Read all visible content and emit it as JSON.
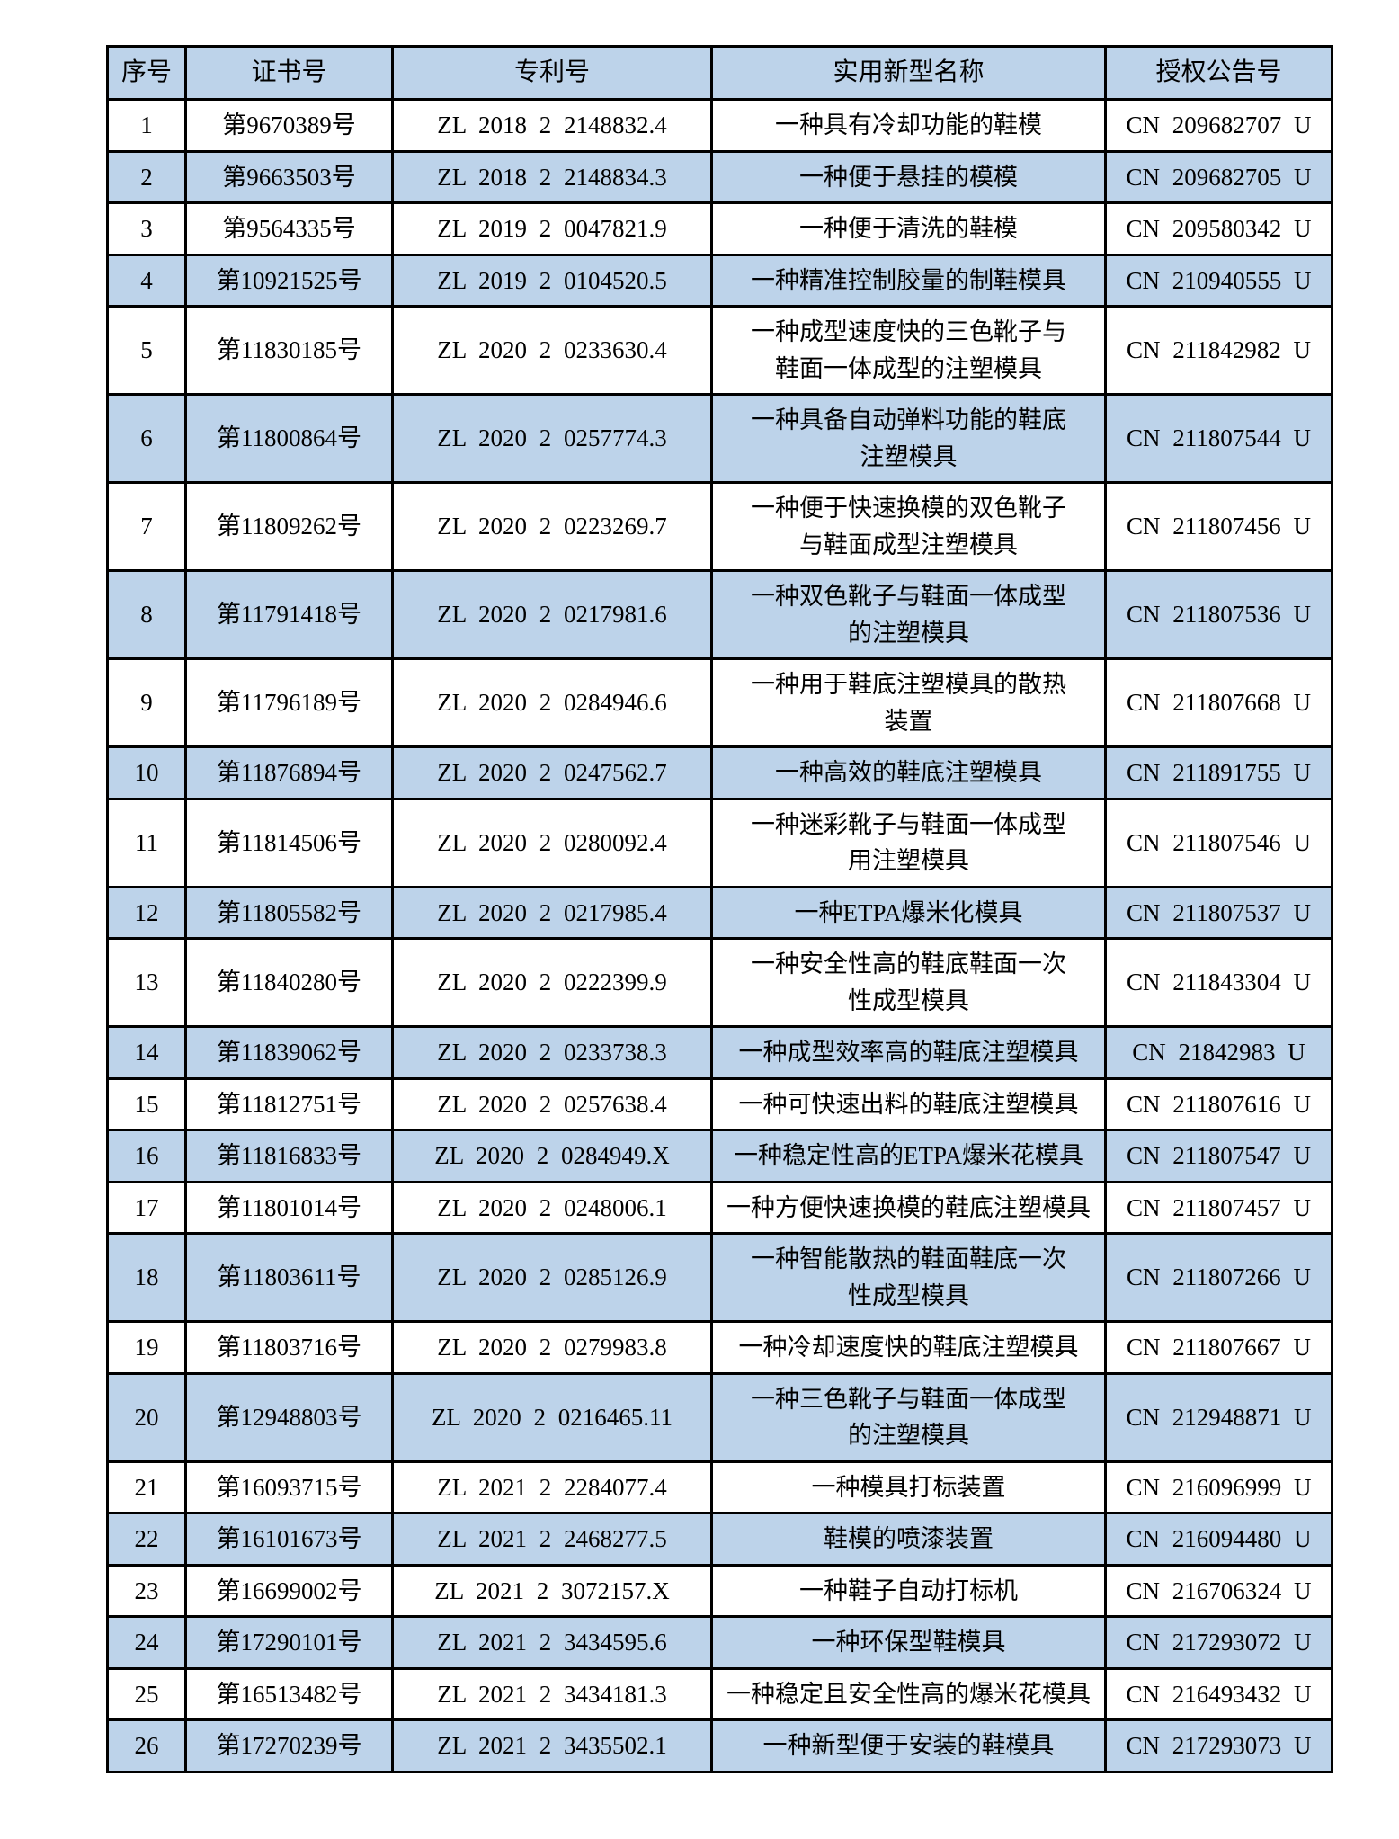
{
  "table": {
    "accent_color": "#bdd3ea",
    "border_color": "#000000",
    "headers": [
      "序号",
      "证书号",
      "专利号",
      "实用新型名称",
      "授权公告号"
    ],
    "rows": [
      {
        "no": "1",
        "cert": "第9670389号",
        "patent": "ZL 2018 2 2148832.4",
        "name": "一种具有冷却功能的鞋模",
        "pub": "CN 209682707 U"
      },
      {
        "no": "2",
        "cert": "第9663503号",
        "patent": "ZL 2018 2 2148834.3",
        "name": "一种便于悬挂的模模",
        "pub": "CN 209682705 U"
      },
      {
        "no": "3",
        "cert": "第9564335号",
        "patent": "ZL 2019 2 0047821.9",
        "name": "一种便于清洗的鞋模",
        "pub": "CN 209580342 U"
      },
      {
        "no": "4",
        "cert": "第10921525号",
        "patent": "ZL 2019 2 0104520.5",
        "name": "一种精准控制胶量的制鞋模具",
        "pub": "CN 210940555 U"
      },
      {
        "no": "5",
        "cert": "第11830185号",
        "patent": "ZL 2020 2 0233630.4",
        "name": "一种成型速度快的三色靴子与\n鞋面一体成型的注塑模具",
        "pub": "CN 211842982 U"
      },
      {
        "no": "6",
        "cert": "第11800864号",
        "patent": "ZL 2020 2 0257774.3",
        "name": "一种具备自动弹料功能的鞋底\n注塑模具",
        "pub": "CN 211807544 U"
      },
      {
        "no": "7",
        "cert": "第11809262号",
        "patent": "ZL 2020 2 0223269.7",
        "name": "一种便于快速换模的双色靴子\n与鞋面成型注塑模具",
        "pub": "CN 211807456 U"
      },
      {
        "no": "8",
        "cert": "第11791418号",
        "patent": "ZL 2020 2 0217981.6",
        "name": "一种双色靴子与鞋面一体成型\n的注塑模具",
        "pub": "CN 211807536 U"
      },
      {
        "no": "9",
        "cert": "第11796189号",
        "patent": "ZL 2020 2 0284946.6",
        "name": "一种用于鞋底注塑模具的散热\n装置",
        "pub": "CN 211807668 U"
      },
      {
        "no": "10",
        "cert": "第11876894号",
        "patent": "ZL 2020 2 0247562.7",
        "name": "一种高效的鞋底注塑模具",
        "pub": "CN 211891755 U"
      },
      {
        "no": "11",
        "cert": "第11814506号",
        "patent": "ZL 2020 2 0280092.4",
        "name": "一种迷彩靴子与鞋面一体成型\n用注塑模具",
        "pub": "CN 211807546 U"
      },
      {
        "no": "12",
        "cert": "第11805582号",
        "patent": "ZL 2020 2 0217985.4",
        "name": "一种ETPA爆米化模具",
        "pub": "CN 211807537 U"
      },
      {
        "no": "13",
        "cert": "第11840280号",
        "patent": "ZL 2020 2 0222399.9",
        "name": "一种安全性高的鞋底鞋面一次\n性成型模具",
        "pub": "CN 211843304 U"
      },
      {
        "no": "14",
        "cert": "第11839062号",
        "patent": "ZL 2020 2 0233738.3",
        "name": "一种成型效率高的鞋底注塑模具",
        "pub": "CN 21842983 U"
      },
      {
        "no": "15",
        "cert": "第11812751号",
        "patent": "ZL 2020 2 0257638.4",
        "name": "一种可快速出料的鞋底注塑模具",
        "pub": "CN 211807616 U"
      },
      {
        "no": "16",
        "cert": "第11816833号",
        "patent": "ZL 2020 2 0284949.X",
        "name": "一种稳定性高的ETPA爆米花模具",
        "pub": "CN 211807547 U"
      },
      {
        "no": "17",
        "cert": "第11801014号",
        "patent": "ZL 2020 2 0248006.1",
        "name": "一种方便快速换模的鞋底注塑模具",
        "pub": "CN 211807457 U"
      },
      {
        "no": "18",
        "cert": "第11803611号",
        "patent": "ZL 2020 2 0285126.9",
        "name": "一种智能散热的鞋面鞋底一次\n性成型模具",
        "pub": "CN 211807266 U"
      },
      {
        "no": "19",
        "cert": "第11803716号",
        "patent": "ZL 2020 2 0279983.8",
        "name": "一种冷却速度快的鞋底注塑模具",
        "pub": "CN 211807667 U"
      },
      {
        "no": "20",
        "cert": "第12948803号",
        "patent": "ZL 2020 2 0216465.11",
        "name": "一种三色靴子与鞋面一体成型\n的注塑模具",
        "pub": "CN 212948871 U"
      },
      {
        "no": "21",
        "cert": "第16093715号",
        "patent": "ZL 2021 2 2284077.4",
        "name": "一种模具打标装置",
        "pub": "CN 216096999 U"
      },
      {
        "no": "22",
        "cert": "第16101673号",
        "patent": "ZL 2021 2 2468277.5",
        "name": "鞋模的喷漆装置",
        "pub": "CN 216094480 U"
      },
      {
        "no": "23",
        "cert": "第16699002号",
        "patent": "ZL 2021 2 3072157.X",
        "name": "一种鞋子自动打标机",
        "pub": "CN 216706324 U"
      },
      {
        "no": "24",
        "cert": "第17290101号",
        "patent": "ZL 2021 2 3434595.6",
        "name": "一种环保型鞋模具",
        "pub": "CN 217293072 U"
      },
      {
        "no": "25",
        "cert": "第16513482号",
        "patent": "ZL 2021 2 3434181.3",
        "name": "一种稳定且安全性高的爆米花模具",
        "pub": "CN 216493432 U"
      },
      {
        "no": "26",
        "cert": "第17270239号",
        "patent": "ZL 2021 2 3435502.1",
        "name": "一种新型便于安装的鞋模具",
        "pub": "CN 217293073 U"
      }
    ]
  }
}
